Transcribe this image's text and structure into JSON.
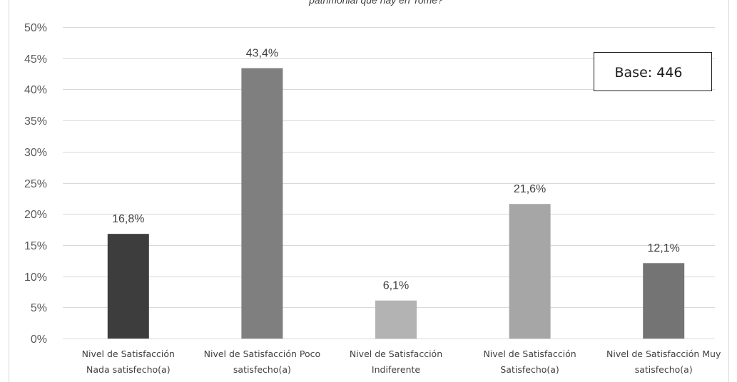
{
  "chart_data": {
    "type": "bar",
    "title": "patrimonial que hay en Tome?",
    "xlabel": "",
    "ylabel": "",
    "categories": [
      [
        "Nivel de Satisfacción",
        "Nada satisfecho(a)"
      ],
      [
        "Nivel de Satisfacción  Poco",
        "satisfecho(a)"
      ],
      [
        "Nivel de Satisfacción",
        "Indiferente"
      ],
      [
        "Nivel de Satisfacción",
        "Satisfecho(a)"
      ],
      [
        "Nivel de Satisfacción  Muy",
        "satisfecho(a)"
      ]
    ],
    "values": [
      16.8,
      43.4,
      6.1,
      21.6,
      12.1
    ],
    "value_labels": [
      "16,8%",
      "43,4%",
      "6,1%",
      "21,6%",
      "12,1%"
    ],
    "bar_colors": [
      "#3d3d3d",
      "#7f7f7f",
      "#b3b3b3",
      "#a6a6a6",
      "#747474"
    ],
    "ylim": [
      0,
      50
    ],
    "yticks": [
      0,
      5,
      10,
      15,
      20,
      25,
      30,
      35,
      40,
      45,
      50
    ],
    "ytick_labels": [
      "0%",
      "5%",
      "10%",
      "15%",
      "20%",
      "25%",
      "30%",
      "35%",
      "40%",
      "45%",
      "50%"
    ],
    "grid": true
  },
  "annotation": {
    "base_label": "Base: 446"
  }
}
